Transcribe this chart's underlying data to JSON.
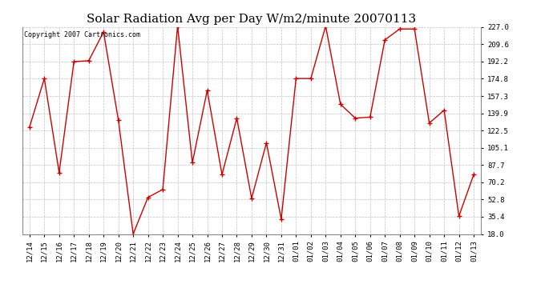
{
  "title": "Solar Radiation Avg per Day W/m2/minute 20070113",
  "copyright_text": "Copyright 2007 Cartronics.com",
  "line_color": "#cc0000",
  "marker_color": "#cc0000",
  "bg_color": "#ffffff",
  "plot_bg_color": "#ffffff",
  "grid_color": "#c0c0c0",
  "labels": [
    "12/14",
    "12/15",
    "12/16",
    "12/17",
    "12/18",
    "12/19",
    "12/20",
    "12/21",
    "12/22",
    "12/23",
    "12/24",
    "12/25",
    "12/26",
    "12/27",
    "12/28",
    "12/29",
    "12/30",
    "12/31",
    "01/01",
    "01/02",
    "01/03",
    "01/04",
    "01/05",
    "01/06",
    "01/07",
    "01/08",
    "01/09",
    "01/10",
    "01/11",
    "01/12",
    "01/13"
  ],
  "values": [
    126,
    175,
    80,
    192,
    193,
    222,
    133,
    18,
    55,
    63,
    228,
    90,
    163,
    78,
    135,
    54,
    110,
    33,
    175,
    175,
    228,
    149,
    135,
    136,
    214,
    225,
    225,
    130,
    143,
    36,
    78
  ],
  "yticks": [
    18.0,
    35.4,
    52.8,
    70.2,
    87.7,
    105.1,
    122.5,
    139.9,
    157.3,
    174.8,
    192.2,
    209.6,
    227.0
  ],
  "ylim": [
    18.0,
    227.0
  ],
  "title_fontsize": 11,
  "tick_fontsize": 6.5,
  "copyright_fontsize": 6
}
